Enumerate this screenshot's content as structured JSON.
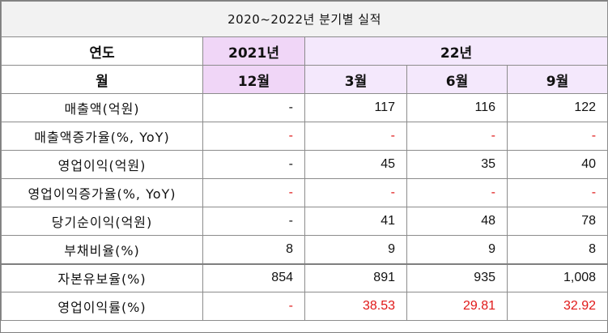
{
  "title": "2020~2022년 분기별 실적",
  "header": {
    "year_label": "연도",
    "year_2021": "2021년",
    "year_22": "22년",
    "month_label": "월",
    "months": [
      "12월",
      "3월",
      "6월",
      "9월"
    ]
  },
  "rows": [
    {
      "label": "매출액(억원)",
      "values": [
        "-",
        "117",
        "116",
        "122"
      ],
      "red": false
    },
    {
      "label": "매출액증가율(%, YoY)",
      "values": [
        "-",
        "-",
        "-",
        "-"
      ],
      "red": true
    },
    {
      "label": "영업이익(억원)",
      "values": [
        "-",
        "45",
        "35",
        "40"
      ],
      "red": false
    },
    {
      "label": "영업이익증가율(%, YoY)",
      "values": [
        "-",
        "-",
        "-",
        "-"
      ],
      "red": true
    },
    {
      "label": "당기순이익(억원)",
      "values": [
        "-",
        "41",
        "48",
        "78"
      ],
      "red": false
    },
    {
      "label": "부채비율(%)",
      "values": [
        "8",
        "9",
        "9",
        "8"
      ],
      "red": false
    },
    {
      "label": "자본유보율(%)",
      "values": [
        "854",
        "891",
        "935",
        "1,008"
      ],
      "red": false
    },
    {
      "label": "영업이익률(%)",
      "values": [
        "-",
        "38.53",
        "29.81",
        "32.92"
      ],
      "red": true
    }
  ],
  "colors": {
    "title_bg": "#f2f2f2",
    "header_2021_bg": "#f0d6f7",
    "header_22_bg": "#f4e8fc",
    "negative_text": "#e01818"
  }
}
